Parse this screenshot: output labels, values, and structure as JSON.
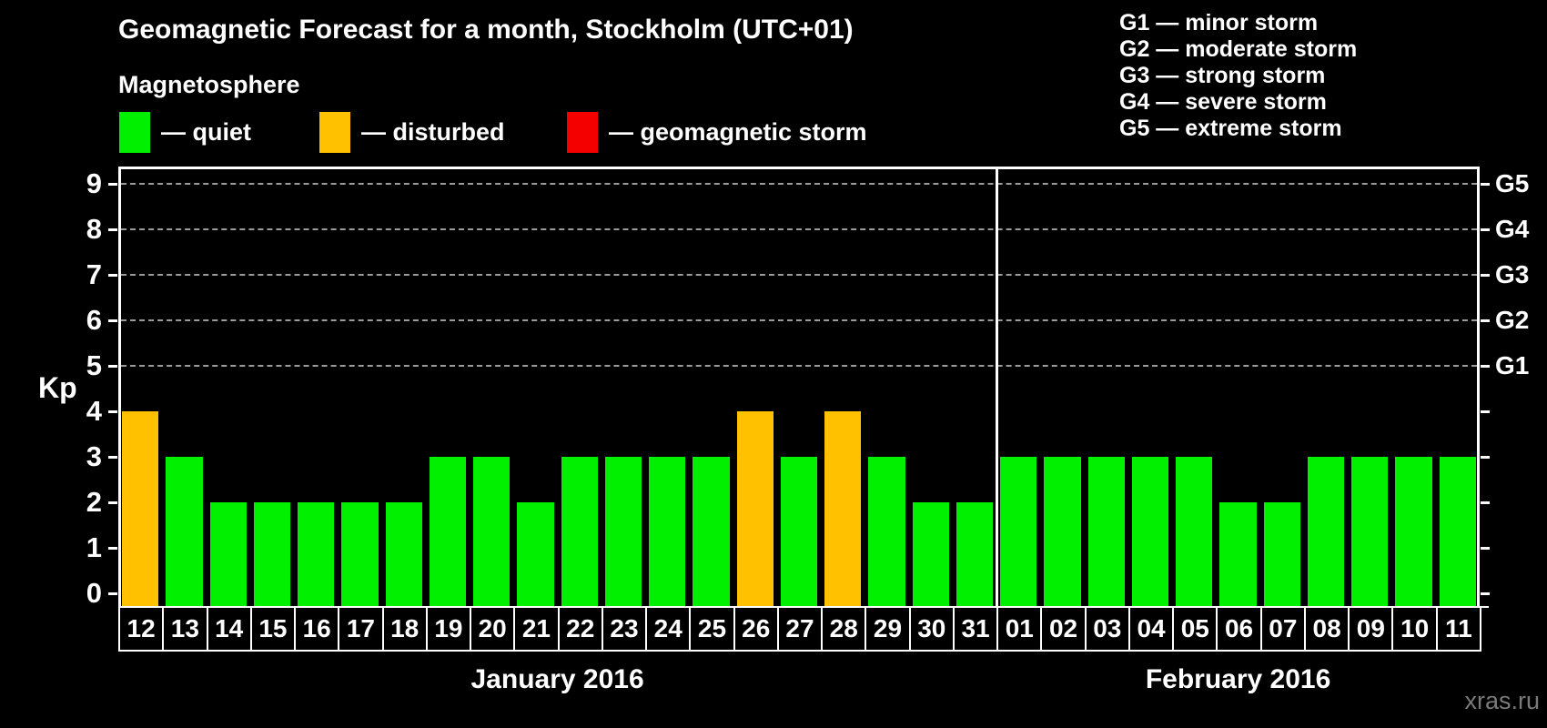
{
  "title": "Geomagnetic Forecast for a month, Stockholm (UTC+01)",
  "legend": {
    "heading": "Magnetosphere",
    "items": [
      {
        "key": "quiet",
        "label": "— quiet",
        "color": "#00f000"
      },
      {
        "key": "disturbed",
        "label": "— disturbed",
        "color": "#ffc100"
      },
      {
        "key": "storm",
        "label": "— geomagnetic storm",
        "color": "#f40000"
      }
    ]
  },
  "storm_scale_legend": [
    "G1 — minor storm",
    "G2 — moderate storm",
    "G3 — strong storm",
    "G4 — severe storm",
    "G5 — extreme storm"
  ],
  "watermark": "xras.ru",
  "chart_data": {
    "type": "bar",
    "ylabel": "Kp",
    "ylim": [
      0,
      9
    ],
    "yticks": [
      0,
      1,
      2,
      3,
      4,
      5,
      6,
      7,
      8,
      9
    ],
    "grid_levels": [
      5,
      6,
      7,
      8,
      9
    ],
    "grid_style": "dashed",
    "legend_position": "top",
    "right_axis": [
      {
        "label": "G1",
        "kp": 5
      },
      {
        "label": "G2",
        "kp": 6
      },
      {
        "label": "G3",
        "kp": 7
      },
      {
        "label": "G4",
        "kp": 8
      },
      {
        "label": "G5",
        "kp": 9
      }
    ],
    "months": [
      {
        "label": "January 2016",
        "days": [
          {
            "day": "12",
            "kp": 4,
            "status": "disturbed"
          },
          {
            "day": "13",
            "kp": 3,
            "status": "quiet"
          },
          {
            "day": "14",
            "kp": 2,
            "status": "quiet"
          },
          {
            "day": "15",
            "kp": 2,
            "status": "quiet"
          },
          {
            "day": "16",
            "kp": 2,
            "status": "quiet"
          },
          {
            "day": "17",
            "kp": 2,
            "status": "quiet"
          },
          {
            "day": "18",
            "kp": 2,
            "status": "quiet"
          },
          {
            "day": "19",
            "kp": 3,
            "status": "quiet"
          },
          {
            "day": "20",
            "kp": 3,
            "status": "quiet"
          },
          {
            "day": "21",
            "kp": 2,
            "status": "quiet"
          },
          {
            "day": "22",
            "kp": 3,
            "status": "quiet"
          },
          {
            "day": "23",
            "kp": 3,
            "status": "quiet"
          },
          {
            "day": "24",
            "kp": 3,
            "status": "quiet"
          },
          {
            "day": "25",
            "kp": 3,
            "status": "quiet"
          },
          {
            "day": "26",
            "kp": 4,
            "status": "disturbed"
          },
          {
            "day": "27",
            "kp": 3,
            "status": "quiet"
          },
          {
            "day": "28",
            "kp": 4,
            "status": "disturbed"
          },
          {
            "day": "29",
            "kp": 3,
            "status": "quiet"
          },
          {
            "day": "30",
            "kp": 2,
            "status": "quiet"
          },
          {
            "day": "31",
            "kp": 2,
            "status": "quiet"
          }
        ]
      },
      {
        "label": "February 2016",
        "days": [
          {
            "day": "01",
            "kp": 3,
            "status": "quiet"
          },
          {
            "day": "02",
            "kp": 3,
            "status": "quiet"
          },
          {
            "day": "03",
            "kp": 3,
            "status": "quiet"
          },
          {
            "day": "04",
            "kp": 3,
            "status": "quiet"
          },
          {
            "day": "05",
            "kp": 3,
            "status": "quiet"
          },
          {
            "day": "06",
            "kp": 2,
            "status": "quiet"
          },
          {
            "day": "07",
            "kp": 2,
            "status": "quiet"
          },
          {
            "day": "08",
            "kp": 3,
            "status": "quiet"
          },
          {
            "day": "09",
            "kp": 3,
            "status": "quiet"
          },
          {
            "day": "10",
            "kp": 3,
            "status": "quiet"
          },
          {
            "day": "11",
            "kp": 3,
            "status": "quiet"
          }
        ]
      }
    ]
  }
}
